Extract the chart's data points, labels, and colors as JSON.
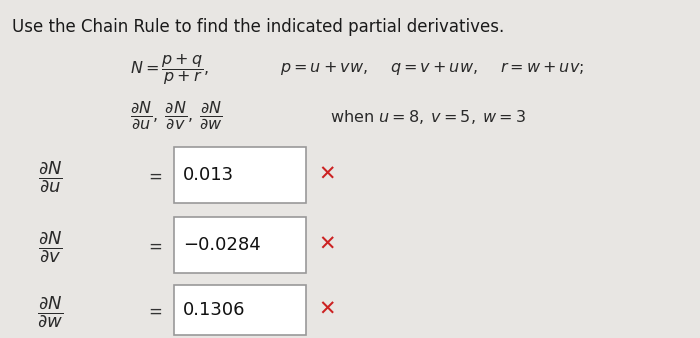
{
  "bg_color": "#e8e6e3",
  "title_text": "Use the Chain Rule to find the indicated partial derivatives.",
  "title_color": "#1a1a1a",
  "label_color": "#2a2a2a",
  "value_color": "#111111",
  "equals_color": "#333333",
  "box_facecolor": "#ffffff",
  "box_edgecolor": "#999999",
  "cross_color": "#cc2222",
  "rows": [
    {
      "value": "0.013"
    },
    {
      "value": "−0.0284"
    },
    {
      "value": "0.1306"
    }
  ],
  "title_fontsize": 12.0,
  "formula_fontsize": 11.5,
  "label_fontsize": 13.0,
  "value_fontsize": 13.0
}
